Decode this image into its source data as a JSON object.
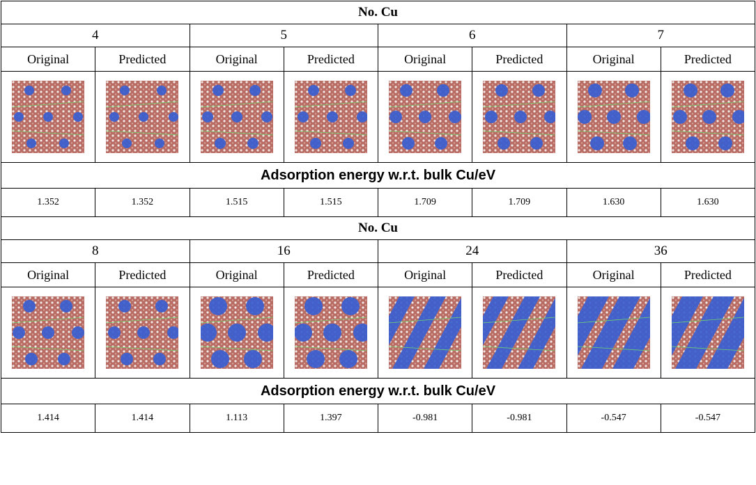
{
  "sections": [
    {
      "header": "No. Cu",
      "counts": [
        "4",
        "5",
        "6",
        "7"
      ],
      "columns": [
        "Original",
        "Predicted",
        "Original",
        "Predicted",
        "Original",
        "Predicted",
        "Original",
        "Predicted"
      ],
      "energy_title": "Adsorption energy w.r.t. bulk Cu/eV",
      "energies": [
        "1.352",
        "1.352",
        "1.515",
        "1.515",
        "1.709",
        "1.709",
        "1.630",
        "1.630"
      ]
    },
    {
      "header": "No. Cu",
      "counts": [
        "8",
        "16",
        "24",
        "36"
      ],
      "columns": [
        "Original",
        "Predicted",
        "Original",
        "Predicted",
        "Original",
        "Predicted",
        "Original",
        "Predicted"
      ],
      "energy_title": "Adsorption energy w.r.t. bulk Cu/eV",
      "energies": [
        "1.414",
        "1.414",
        "1.113",
        "1.397",
        "-0.981",
        "-0.981",
        "-0.547",
        "-0.547"
      ]
    }
  ]
}
